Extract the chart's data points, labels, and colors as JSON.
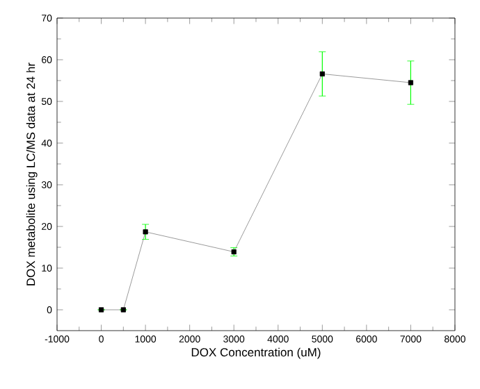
{
  "chart_data": {
    "type": "line",
    "xlabel": "DOX Concentration (uM)",
    "ylabel": "DOX metabolite using LC/MS data at 24 hr",
    "x": [
      0,
      500,
      1000,
      3000,
      5000,
      7000
    ],
    "series": [
      {
        "color": "#000000",
        "values": [
          0,
          0,
          18.7,
          13.9,
          56.6,
          54.5
        ],
        "errors": [
          null,
          null,
          1.8,
          1.0,
          5.3,
          5.2
        ]
      }
    ],
    "xlim": [
      -1000,
      8000
    ],
    "xticks": [
      -1000,
      0,
      1000,
      2000,
      3000,
      4000,
      5000,
      6000,
      7000,
      8000
    ],
    "ylim": [
      -5,
      70
    ],
    "yticks": [
      0,
      10,
      20,
      30,
      40,
      50,
      60,
      70
    ],
    "marker": "square",
    "line_style": "solid"
  }
}
